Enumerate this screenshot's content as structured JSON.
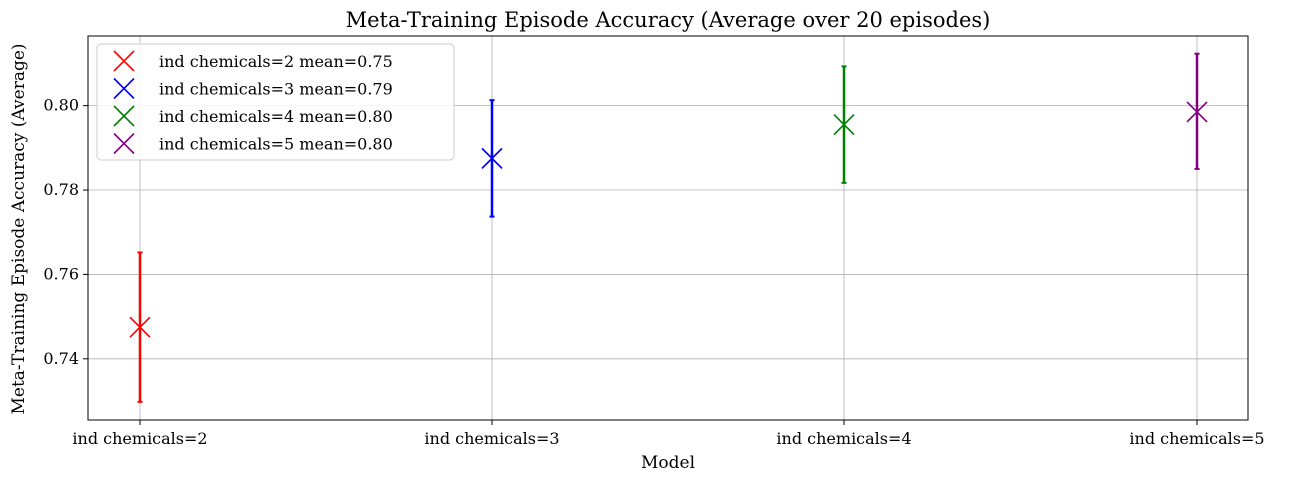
{
  "chart_data": {
    "type": "scatter",
    "title": "Meta-Training Episode Accuracy (Average over 20 episodes)",
    "xlabel": "Model",
    "ylabel": "Meta-Training Episode Accuracy (Average)",
    "categories": [
      "ind chemicals=2",
      "ind chemicals=3",
      "ind chemicals=4",
      "ind chemicals=5"
    ],
    "ylim": [
      0.7255,
      0.8165
    ],
    "yticks": [
      0.74,
      0.76,
      0.78,
      0.8
    ],
    "ytick_labels": [
      "0.74",
      "0.76",
      "0.78",
      "0.80"
    ],
    "grid": true,
    "legend_position": "upper-left",
    "marker": "x",
    "series": [
      {
        "name": "ind chemicals=2 mean=0.75",
        "category": "ind chemicals=2",
        "value": 0.7475,
        "error_low": 0.7298,
        "error_high": 0.7652,
        "color": "#ff0000"
      },
      {
        "name": "ind chemicals=3 mean=0.79",
        "category": "ind chemicals=3",
        "value": 0.7875,
        "error_low": 0.7737,
        "error_high": 0.8013,
        "color": "#0000ff"
      },
      {
        "name": "ind chemicals=4 mean=0.80",
        "category": "ind chemicals=4",
        "value": 0.7955,
        "error_low": 0.7817,
        "error_high": 0.8093,
        "color": "#008000"
      },
      {
        "name": "ind chemicals=5 mean=0.80",
        "category": "ind chemicals=5",
        "value": 0.7985,
        "error_low": 0.785,
        "error_high": 0.8123,
        "color": "#800080"
      }
    ]
  }
}
